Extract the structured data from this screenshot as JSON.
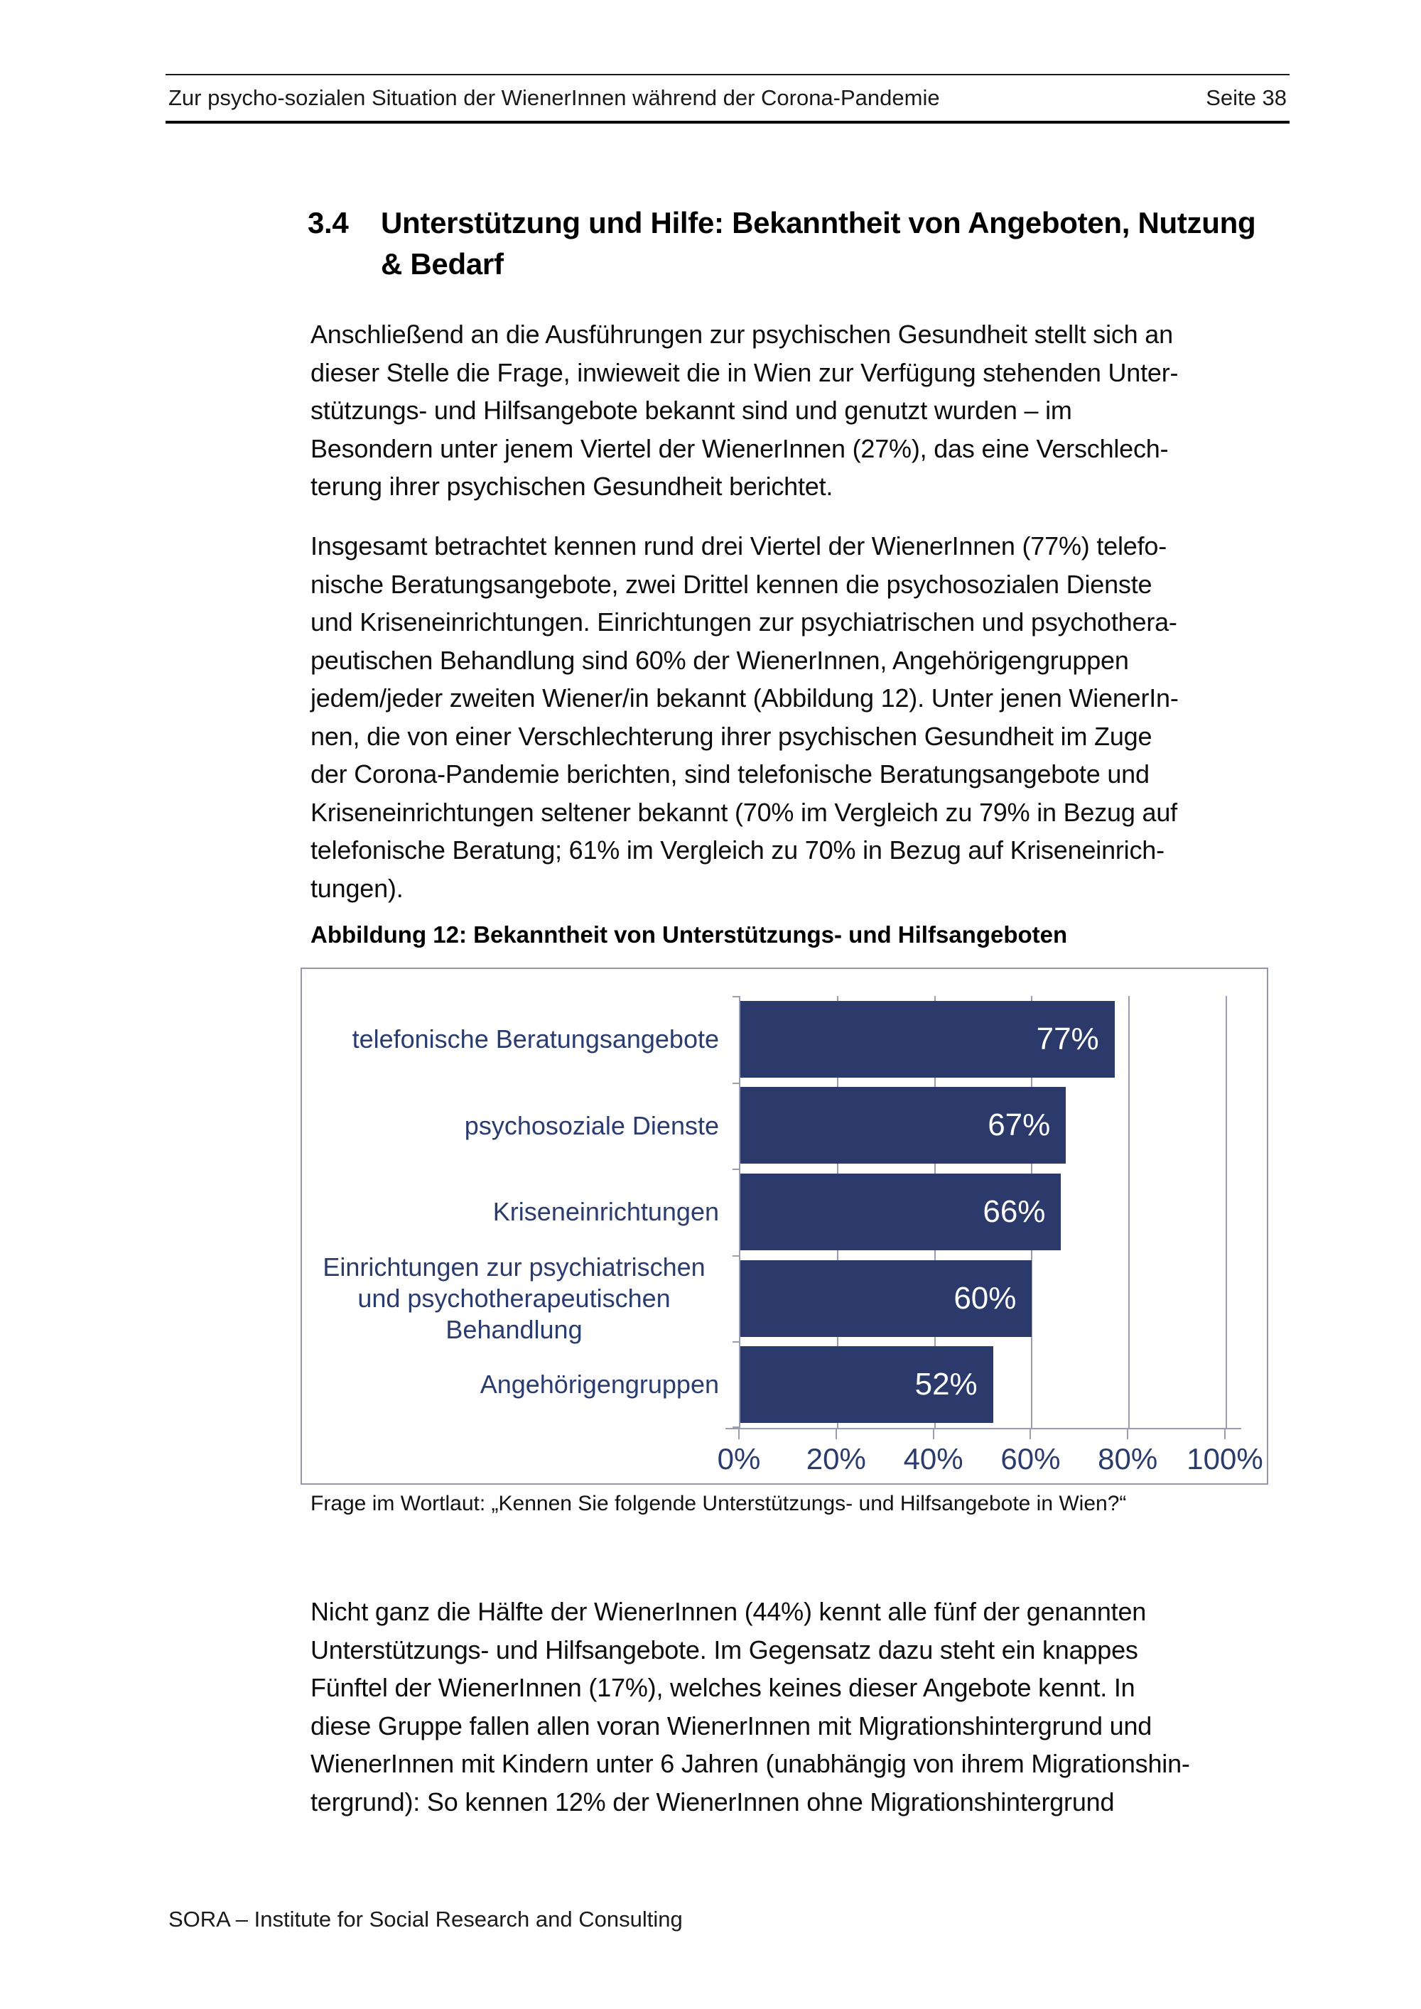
{
  "header": {
    "title": "Zur psycho-sozialen Situation der WienerInnen während der Corona-Pandemie",
    "page_label": "Seite 38"
  },
  "section": {
    "number": "3.4",
    "title_lines": [
      "Unterstützung und Hilfe: Bekanntheit von Angeboten, Nutzung",
      "& Bedarf"
    ]
  },
  "paragraphs": {
    "p1": [
      "Anschließend an die Ausführungen zur psychischen Gesundheit stellt sich an",
      "dieser Stelle die Frage, inwieweit die in Wien zur Verfügung stehenden Unter-",
      "stützungs- und Hilfsangebote bekannt sind und genutzt wurden – im",
      "Besondern unter jenem Viertel der WienerInnen (27%), das eine Verschlech-",
      "terung ihrer psychischen Gesundheit berichtet."
    ],
    "p2": [
      "Insgesamt betrachtet kennen rund drei Viertel der WienerInnen (77%) telefo-",
      "nische Beratungsangebote, zwei Drittel kennen die psychosozialen Dienste",
      "und Kriseneinrichtungen. Einrichtungen zur psychiatrischen und psychothera-",
      "peutischen Behandlung sind 60% der WienerInnen, Angehörigengruppen",
      "jedem/jeder zweiten Wiener/in bekannt (Abbildung 12). Unter jenen WienerIn-",
      "nen, die von einer Verschlechterung ihrer psychischen Gesundheit im Zuge",
      "der Corona-Pandemie berichten, sind telefonische Beratungsangebote und",
      "Kriseneinrichtungen seltener bekannt (70% im Vergleich zu 79% in Bezug auf",
      "telefonische Beratung; 61% im Vergleich zu 70% in Bezug auf Kriseneinrich-",
      "tungen)."
    ],
    "p3": [
      "Nicht ganz die Hälfte der WienerInnen (44%) kennt alle fünf der genannten",
      "Unterstützungs- und Hilfsangebote. Im Gegensatz dazu steht ein knappes",
      "Fünftel der WienerInnen (17%), welches keines dieser Angebote kennt. In",
      "diese Gruppe fallen allen voran WienerInnen mit Migrationshintergrund und",
      "WienerInnen mit Kindern unter 6 Jahren (unabhängig von ihrem Migrationshin-",
      "tergrund): So kennen 12% der WienerInnen ohne Migrationshintergrund"
    ]
  },
  "figure": {
    "caption": "Abbildung 12: Bekanntheit von Unterstützungs- und Hilfsangeboten",
    "note": "Frage im Wortlaut: „Kennen Sie folgende Unterstützungs- und Hilfsangebote in Wien?“"
  },
  "chart_data": {
    "type": "bar",
    "orientation": "horizontal",
    "categories": [
      "telefonische Beratungsangebote",
      "psychosoziale Dienste",
      "Kriseneinrichtungen",
      "Einrichtungen zur psychiatrischen und psychotherapeutischen Behandlung",
      "Angehörigengruppen"
    ],
    "values": [
      77,
      67,
      66,
      60,
      52
    ],
    "value_labels": [
      "77%",
      "67%",
      "66%",
      "60%",
      "52%"
    ],
    "x_ticks": [
      "0%",
      "20%",
      "40%",
      "60%",
      "80%",
      "100%"
    ],
    "xlim": [
      0,
      100
    ],
    "grid": true,
    "legend": "none",
    "bar_color": "#2b3a6b",
    "category_label_color": "#2a3b6e",
    "value_label_color": "#ffffff",
    "gridline_color": "#9a9db0"
  },
  "footer": {
    "text": "SORA – Institute for Social Research and Consulting"
  }
}
